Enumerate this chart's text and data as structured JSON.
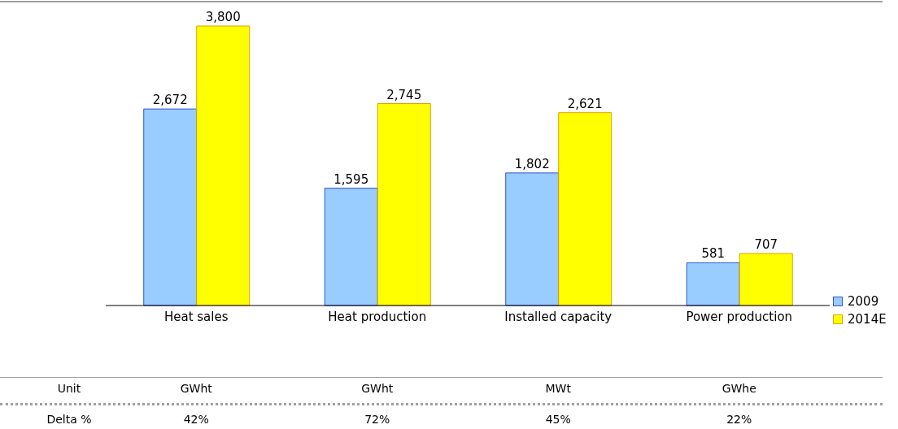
{
  "chart_data": {
    "type": "bar",
    "categories": [
      "Heat sales",
      "Heat production",
      "Installed capacity",
      "Power production"
    ],
    "series": [
      {
        "name": "2009",
        "color": "#99ccff",
        "values": [
          2672,
          1595,
          1802,
          581
        ],
        "value_labels": [
          "2,672",
          "1,595",
          "1,802",
          "581"
        ]
      },
      {
        "name": "2014E",
        "color": "#ffff00",
        "values": [
          3800,
          2745,
          2621,
          707
        ],
        "value_labels": [
          "3,800",
          "2,745",
          "2,621",
          "707"
        ]
      }
    ],
    "legend": "right",
    "annotations": [
      "Unit",
      "GWht",
      "GWht",
      "MWt",
      "GWhe",
      "Delta %",
      "42%",
      "72%",
      "45%",
      "22%"
    ]
  }
}
